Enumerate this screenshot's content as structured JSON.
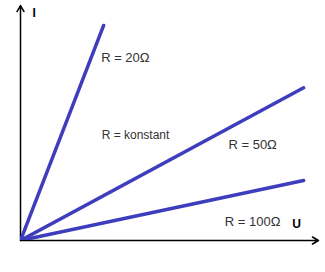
{
  "chart_data": {
    "type": "line",
    "x_label": "U",
    "y_label": "I",
    "xlim": [
      0,
      100
    ],
    "ylim": [
      0,
      100
    ],
    "tick_labels": false,
    "grid": false,
    "annotations": [
      "R = konstant"
    ],
    "series": [
      {
        "name": "R = 20Ω",
        "color": "#3d3dbd",
        "x": [
          0,
          27.9
        ],
        "values": [
          0,
          91.5
        ]
      },
      {
        "name": "R = 50Ω",
        "color": "#3d3dbd",
        "x": [
          0,
          95
        ],
        "values": [
          0,
          65
        ]
      },
      {
        "name": "R = 100Ω",
        "color": "#3d3dbd",
        "x": [
          0,
          95
        ],
        "values": [
          0,
          25.5
        ]
      }
    ]
  }
}
